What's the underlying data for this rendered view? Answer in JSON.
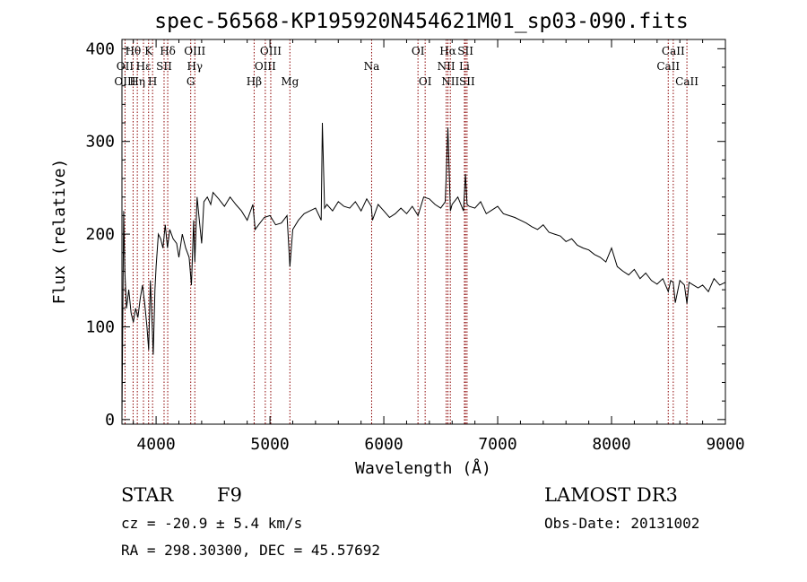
{
  "chart_data": {
    "type": "line",
    "title": "spec-56568-KP195920N454621M01_sp03-090.fits",
    "xlabel": "Wavelength (Å)",
    "ylabel": "Flux (relative)",
    "xlim": [
      3700,
      9000
    ],
    "ylim": [
      -5,
      410
    ],
    "xticks": [
      4000,
      5000,
      6000,
      7000,
      8000,
      9000
    ],
    "yticks": [
      0,
      100,
      200,
      300,
      400
    ],
    "grid": false,
    "series": [
      {
        "x": [
          3700,
          3715,
          3725,
          3740,
          3760,
          3780,
          3800,
          3820,
          3840,
          3860,
          3880,
          3900,
          3920,
          3935,
          3950,
          3960,
          3975,
          3990,
          4000,
          4020,
          4040,
          4060,
          4080,
          4100,
          4120,
          4150,
          4180,
          4200,
          4230,
          4260,
          4290,
          4310,
          4330,
          4340,
          4360,
          4380,
          4400,
          4420,
          4450,
          4480,
          4500,
          4550,
          4600,
          4650,
          4700,
          4750,
          4800,
          4850,
          4870,
          4900,
          4950,
          5000,
          5050,
          5100,
          5150,
          5175,
          5200,
          5250,
          5300,
          5350,
          5400,
          5450,
          5460,
          5480,
          5500,
          5550,
          5600,
          5650,
          5700,
          5750,
          5800,
          5850,
          5890,
          5900,
          5950,
          6000,
          6050,
          6100,
          6150,
          6200,
          6250,
          6300,
          6350,
          6400,
          6450,
          6500,
          6540,
          6563,
          6585,
          6600,
          6650,
          6700,
          6717,
          6731,
          6750,
          6800,
          6850,
          6900,
          6950,
          7000,
          7050,
          7100,
          7150,
          7200,
          7250,
          7300,
          7350,
          7400,
          7450,
          7500,
          7550,
          7600,
          7650,
          7700,
          7750,
          7800,
          7850,
          7900,
          7950,
          8000,
          8050,
          8100,
          8150,
          8200,
          8250,
          8300,
          8350,
          8400,
          8450,
          8498,
          8520,
          8542,
          8560,
          8600,
          8640,
          8662,
          8680,
          8720,
          8760,
          8800,
          8850,
          8900,
          8950,
          9000
        ],
        "y": [
          0,
          225,
          160,
          120,
          140,
          115,
          105,
          120,
          110,
          130,
          145,
          125,
          100,
          75,
          150,
          120,
          70,
          140,
          165,
          200,
          195,
          185,
          210,
          185,
          205,
          195,
          190,
          175,
          200,
          185,
          175,
          145,
          215,
          170,
          240,
          215,
          190,
          235,
          240,
          232,
          245,
          238,
          230,
          240,
          232,
          225,
          215,
          232,
          205,
          210,
          218,
          220,
          210,
          212,
          220,
          165,
          205,
          215,
          222,
          225,
          228,
          215,
          320,
          228,
          232,
          225,
          235,
          230,
          228,
          235,
          225,
          238,
          230,
          215,
          232,
          225,
          218,
          222,
          228,
          222,
          230,
          220,
          240,
          238,
          232,
          228,
          235,
          315,
          225,
          232,
          240,
          225,
          265,
          232,
          230,
          228,
          235,
          222,
          226,
          230,
          222,
          220,
          218,
          215,
          212,
          208,
          205,
          210,
          202,
          200,
          198,
          192,
          195,
          188,
          185,
          183,
          178,
          175,
          170,
          185,
          165,
          160,
          156,
          162,
          152,
          158,
          150,
          146,
          152,
          138,
          150,
          148,
          126,
          150,
          145,
          125,
          148,
          145,
          142,
          145,
          138,
          152,
          145,
          148
        ]
      }
    ],
    "spectral_lines": [
      {
        "label": "Hθ",
        "row": 1,
        "x": 3798
      },
      {
        "label": "OII",
        "row": 2,
        "x": 3727
      },
      {
        "label": "OIII",
        "row": 3,
        "x": 3727
      },
      {
        "label": "Hε",
        "row": 2,
        "x": 3889
      },
      {
        "label": "Hη",
        "row": 3,
        "x": 3835
      },
      {
        "label": "K",
        "row": 1,
        "x": 3934
      },
      {
        "label": "SII",
        "row": 2,
        "x": 4070
      },
      {
        "label": "H",
        "row": 3,
        "x": 3969
      },
      {
        "label": "Hδ",
        "row": 1,
        "x": 4102
      },
      {
        "label": "OIII",
        "row": 1,
        "x": 4340
      },
      {
        "label": "Hγ",
        "row": 2,
        "x": 4340
      },
      {
        "label": "G",
        "row": 3,
        "x": 4304
      },
      {
        "label": "OIII",
        "row": 1,
        "x": 5007
      },
      {
        "label": "OIII",
        "row": 2,
        "x": 4959
      },
      {
        "label": "Hβ",
        "row": 3,
        "x": 4861
      },
      {
        "label": "Mg",
        "row": 3,
        "x": 5175
      },
      {
        "label": "Na",
        "row": 2,
        "x": 5893
      },
      {
        "label": "OI",
        "row": 1,
        "x": 6300
      },
      {
        "label": "OI",
        "row": 3,
        "x": 6363
      },
      {
        "label": "Hα",
        "row": 1,
        "x": 6563
      },
      {
        "label": "NII",
        "row": 2,
        "x": 6548
      },
      {
        "label": "NII",
        "row": 3,
        "x": 6584
      },
      {
        "label": "SII",
        "row": 1,
        "x": 6717
      },
      {
        "label": "Li",
        "row": 2,
        "x": 6708
      },
      {
        "label": "SII",
        "row": 3,
        "x": 6731
      },
      {
        "label": "CaII",
        "row": 1,
        "x": 8542
      },
      {
        "label": "CaII",
        "row": 2,
        "x": 8498
      },
      {
        "label": "CaII",
        "row": 3,
        "x": 8662
      }
    ],
    "line_color": "#8b0000",
    "spectrum_color": "#000000"
  },
  "info": {
    "class": "STAR",
    "subclass": "F9",
    "survey": "LAMOST DR3",
    "cz": "cz = -20.9 ± 5.4 km/s",
    "obsdate": "Obs-Date: 20131002",
    "radec": "RA = 298.30300, DEC =  45.57692"
  }
}
